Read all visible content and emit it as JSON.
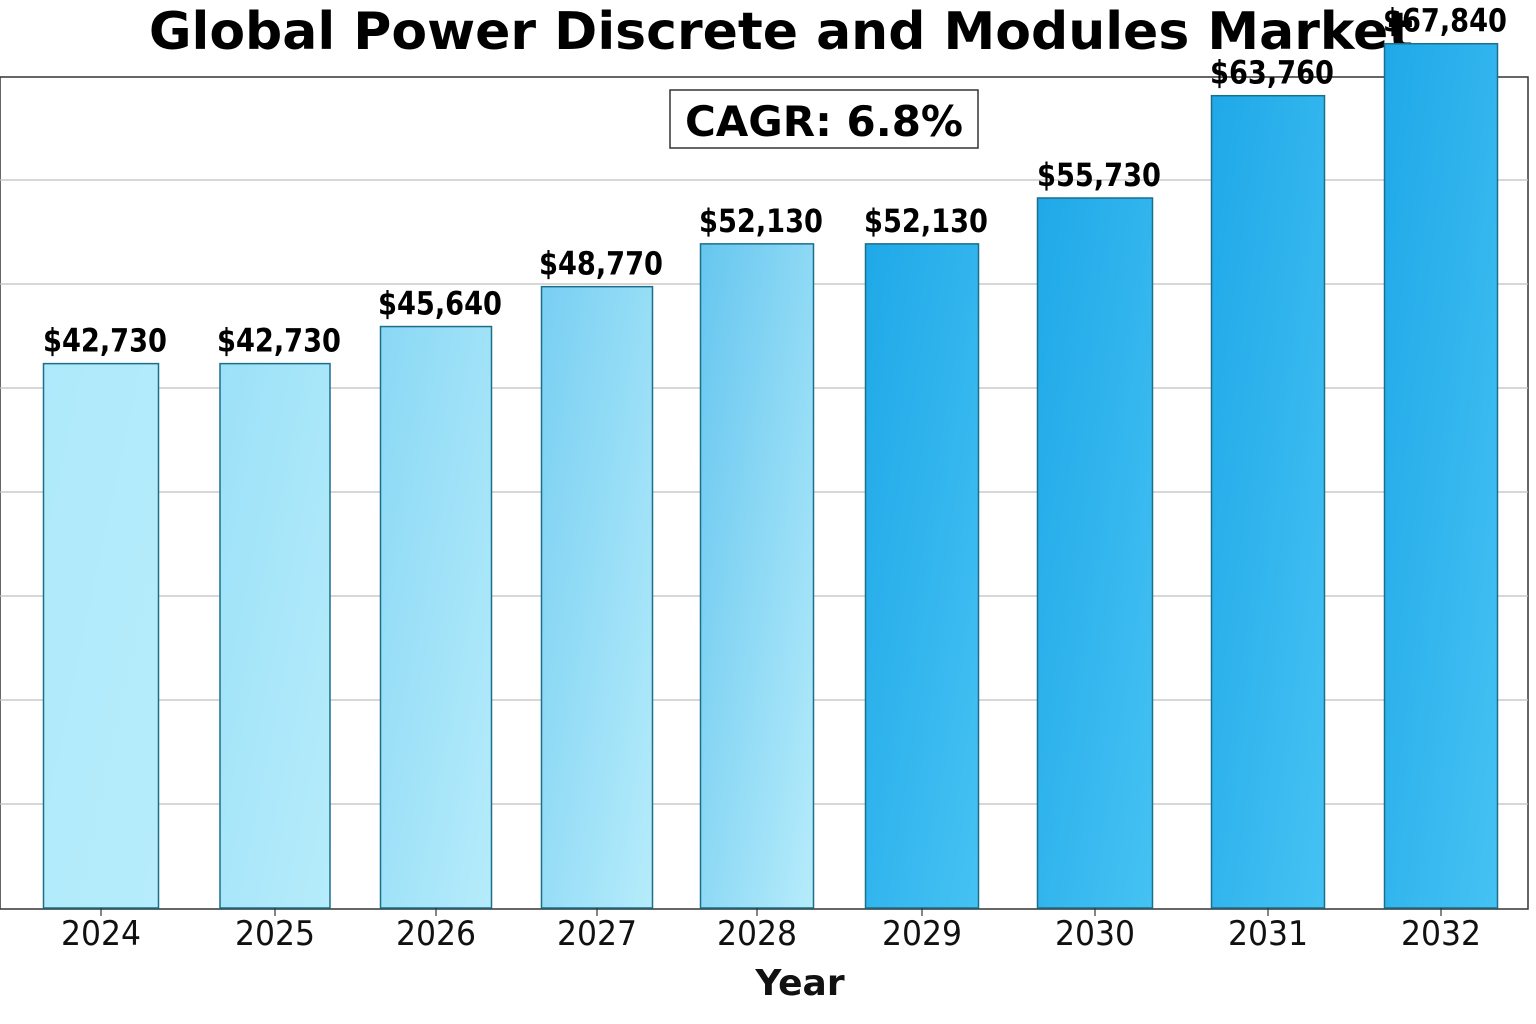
{
  "chart_data": {
    "type": "bar",
    "title": "Global Power Discrete and Modules Market",
    "xlabel": "Year",
    "ylabel": "",
    "categories": [
      "2024",
      "2025",
      "2026",
      "2027",
      "2028",
      "2029",
      "2030",
      "2031",
      "2032"
    ],
    "values": [
      42730,
      42730,
      45640,
      48770,
      52130,
      52130,
      55730,
      63760,
      67840
    ],
    "value_labels": [
      "$42,730",
      "$42,730",
      "$45,640",
      "$48,770",
      "$52,130",
      "$52,130",
      "$55,730",
      "$63,760",
      "$67,840"
    ],
    "annotation": "CAGR: 6.8%",
    "grid": true,
    "legend": "none",
    "colors": {
      "light_start": "#aeeafb",
      "light_end": "#66c6ef",
      "dark": "#22abea",
      "bar_edge": "#1b6f8a"
    }
  }
}
